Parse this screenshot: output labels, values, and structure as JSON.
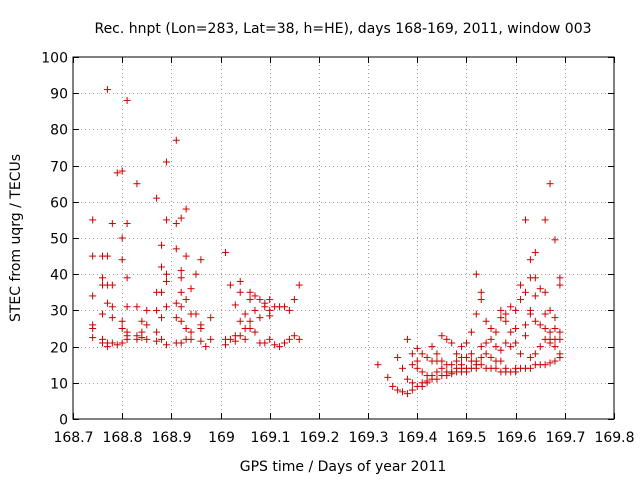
{
  "chart_data": {
    "type": "scatter",
    "title": "Rec. hnpt (Lon=283, Lat=38, h=HE), days 168-169, 2011, window 003",
    "xlabel": "GPS time / Days of year 2011",
    "ylabel": "STEC from uqrg / TECUs",
    "xlim": [
      168.7,
      169.8
    ],
    "ylim": [
      0,
      100
    ],
    "x_ticks": [
      "168.7",
      "168.8",
      "168.9",
      "169",
      "169.1",
      "169.2",
      "169.3",
      "169.4",
      "169.5",
      "169.6",
      "169.7",
      "169.8"
    ],
    "y_ticks": [
      "0",
      "10",
      "20",
      "30",
      "40",
      "50",
      "60",
      "70",
      "80",
      "90",
      "100"
    ],
    "grid": true,
    "marker": "+",
    "color": "#cc0000",
    "series": [
      {
        "points": [
          [
            168.74,
            55
          ],
          [
            168.74,
            45
          ],
          [
            168.74,
            34
          ],
          [
            168.74,
            26
          ],
          [
            168.74,
            25
          ],
          [
            168.74,
            22.5
          ],
          [
            168.76,
            45
          ],
          [
            168.76,
            39
          ],
          [
            168.76,
            37
          ],
          [
            168.76,
            29
          ],
          [
            168.76,
            22
          ],
          [
            168.76,
            21
          ],
          [
            168.77,
            91
          ],
          [
            168.77,
            45
          ],
          [
            168.77,
            37
          ],
          [
            168.77,
            32
          ],
          [
            168.77,
            21
          ],
          [
            168.77,
            20
          ],
          [
            168.78,
            54
          ],
          [
            168.78,
            37
          ],
          [
            168.78,
            31
          ],
          [
            168.78,
            28
          ],
          [
            168.78,
            21
          ],
          [
            168.79,
            68
          ],
          [
            168.79,
            20.5
          ],
          [
            168.8,
            68.5
          ],
          [
            168.8,
            50
          ],
          [
            168.8,
            44
          ],
          [
            168.8,
            27
          ],
          [
            168.8,
            25
          ],
          [
            168.8,
            21
          ],
          [
            168.81,
            88
          ],
          [
            168.81,
            54
          ],
          [
            168.81,
            39
          ],
          [
            168.81,
            31
          ],
          [
            168.81,
            24
          ],
          [
            168.81,
            23
          ],
          [
            168.81,
            22
          ],
          [
            168.83,
            65
          ],
          [
            168.83,
            31
          ],
          [
            168.83,
            23
          ],
          [
            168.83,
            22
          ],
          [
            168.84,
            27
          ],
          [
            168.84,
            24
          ],
          [
            168.84,
            22.5
          ],
          [
            168.85,
            30
          ],
          [
            168.85,
            26
          ],
          [
            168.85,
            22
          ],
          [
            168.87,
            61
          ],
          [
            168.87,
            35
          ],
          [
            168.87,
            30
          ],
          [
            168.87,
            24
          ],
          [
            168.87,
            21.5
          ],
          [
            168.88,
            48
          ],
          [
            168.88,
            42
          ],
          [
            168.88,
            35
          ],
          [
            168.88,
            28
          ],
          [
            168.88,
            22
          ],
          [
            168.89,
            71
          ],
          [
            168.89,
            55
          ],
          [
            168.89,
            40
          ],
          [
            168.89,
            38
          ],
          [
            168.89,
            31
          ],
          [
            168.89,
            20.5
          ],
          [
            168.91,
            77
          ],
          [
            168.91,
            54
          ],
          [
            168.91,
            47
          ],
          [
            168.91,
            32
          ],
          [
            168.91,
            28
          ],
          [
            168.91,
            21
          ],
          [
            168.92,
            55.5
          ],
          [
            168.92,
            41
          ],
          [
            168.92,
            39
          ],
          [
            168.92,
            35
          ],
          [
            168.92,
            31
          ],
          [
            168.92,
            27
          ],
          [
            168.92,
            21
          ],
          [
            168.93,
            58
          ],
          [
            168.93,
            45
          ],
          [
            168.93,
            33
          ],
          [
            168.93,
            25
          ],
          [
            168.93,
            22
          ],
          [
            168.94,
            36
          ],
          [
            168.94,
            29
          ],
          [
            168.94,
            24
          ],
          [
            168.94,
            22
          ],
          [
            168.95,
            40
          ],
          [
            168.95,
            29
          ],
          [
            168.96,
            44
          ],
          [
            168.96,
            26
          ],
          [
            168.96,
            25
          ],
          [
            168.96,
            21.5
          ],
          [
            168.97,
            20
          ],
          [
            168.98,
            28
          ],
          [
            168.98,
            22
          ],
          [
            169.01,
            46
          ],
          [
            169.01,
            22
          ],
          [
            169.01,
            20.5
          ],
          [
            169.02,
            37
          ],
          [
            169.02,
            22
          ],
          [
            169.03,
            31.5
          ],
          [
            169.03,
            23
          ],
          [
            169.03,
            21.5
          ],
          [
            169.04,
            38
          ],
          [
            169.04,
            35
          ],
          [
            169.04,
            27
          ],
          [
            169.04,
            23
          ],
          [
            169.05,
            29
          ],
          [
            169.05,
            25
          ],
          [
            169.05,
            22
          ],
          [
            169.06,
            35
          ],
          [
            169.06,
            33
          ],
          [
            169.06,
            27
          ],
          [
            169.06,
            25
          ],
          [
            169.07,
            34
          ],
          [
            169.07,
            30
          ],
          [
            169.07,
            24
          ],
          [
            169.08,
            33
          ],
          [
            169.08,
            28
          ],
          [
            169.08,
            21
          ],
          [
            169.09,
            32
          ],
          [
            169.09,
            31
          ],
          [
            169.09,
            21
          ],
          [
            169.1,
            33
          ],
          [
            169.1,
            30
          ],
          [
            169.1,
            28.5
          ],
          [
            169.1,
            22
          ],
          [
            169.11,
            31
          ],
          [
            169.11,
            20.5
          ],
          [
            169.12,
            31
          ],
          [
            169.12,
            20
          ],
          [
            169.13,
            31
          ],
          [
            169.13,
            21
          ],
          [
            169.14,
            30
          ],
          [
            169.14,
            22
          ],
          [
            169.15,
            33
          ],
          [
            169.15,
            23
          ],
          [
            169.16,
            37
          ],
          [
            169.16,
            22
          ],
          [
            169.32,
            15
          ],
          [
            169.34,
            11.5
          ],
          [
            169.35,
            9
          ],
          [
            169.36,
            17
          ],
          [
            169.36,
            8
          ],
          [
            169.37,
            14
          ],
          [
            169.37,
            7.5
          ],
          [
            169.38,
            22
          ],
          [
            169.38,
            11
          ],
          [
            169.38,
            7
          ],
          [
            169.39,
            18
          ],
          [
            169.39,
            15
          ],
          [
            169.39,
            10
          ],
          [
            169.39,
            8
          ],
          [
            169.4,
            19.5
          ],
          [
            169.4,
            16
          ],
          [
            169.4,
            14
          ],
          [
            169.4,
            9
          ],
          [
            169.41,
            18
          ],
          [
            169.41,
            13
          ],
          [
            169.41,
            10
          ],
          [
            169.41,
            9
          ],
          [
            169.42,
            17
          ],
          [
            169.42,
            12
          ],
          [
            169.42,
            10.5
          ],
          [
            169.42,
            10
          ],
          [
            169.43,
            20
          ],
          [
            169.43,
            16
          ],
          [
            169.43,
            12
          ],
          [
            169.43,
            11
          ],
          [
            169.44,
            18
          ],
          [
            169.44,
            16
          ],
          [
            169.44,
            13
          ],
          [
            169.44,
            11
          ],
          [
            169.45,
            23
          ],
          [
            169.45,
            16
          ],
          [
            169.45,
            14
          ],
          [
            169.45,
            12
          ],
          [
            169.46,
            22
          ],
          [
            169.46,
            15
          ],
          [
            169.46,
            13
          ],
          [
            169.46,
            12
          ],
          [
            169.47,
            21
          ],
          [
            169.47,
            15
          ],
          [
            169.47,
            13
          ],
          [
            169.47,
            12.5
          ],
          [
            169.48,
            18
          ],
          [
            169.48,
            16
          ],
          [
            169.48,
            14
          ],
          [
            169.48,
            13
          ],
          [
            169.49,
            20
          ],
          [
            169.49,
            17
          ],
          [
            169.49,
            15
          ],
          [
            169.49,
            14
          ],
          [
            169.49,
            13
          ],
          [
            169.5,
            21
          ],
          [
            169.5,
            17
          ],
          [
            169.5,
            14
          ],
          [
            169.5,
            13
          ],
          [
            169.51,
            24
          ],
          [
            169.51,
            18
          ],
          [
            169.51,
            16
          ],
          [
            169.51,
            14
          ],
          [
            169.52,
            40
          ],
          [
            169.52,
            29
          ],
          [
            169.52,
            16
          ],
          [
            169.52,
            15
          ],
          [
            169.52,
            14
          ],
          [
            169.53,
            35
          ],
          [
            169.53,
            33
          ],
          [
            169.53,
            20
          ],
          [
            169.53,
            17
          ],
          [
            169.53,
            15
          ],
          [
            169.54,
            27
          ],
          [
            169.54,
            21
          ],
          [
            169.54,
            18
          ],
          [
            169.54,
            14
          ],
          [
            169.55,
            25
          ],
          [
            169.55,
            22
          ],
          [
            169.55,
            17
          ],
          [
            169.55,
            14
          ],
          [
            169.56,
            24
          ],
          [
            169.56,
            20
          ],
          [
            169.56,
            16
          ],
          [
            169.56,
            14
          ],
          [
            169.57,
            30
          ],
          [
            169.57,
            28
          ],
          [
            169.57,
            19
          ],
          [
            169.57,
            16
          ],
          [
            169.57,
            13
          ],
          [
            169.58,
            29
          ],
          [
            169.58,
            27
          ],
          [
            169.58,
            21
          ],
          [
            169.58,
            14
          ],
          [
            169.58,
            13
          ],
          [
            169.59,
            31
          ],
          [
            169.59,
            24
          ],
          [
            169.59,
            20
          ],
          [
            169.59,
            13
          ],
          [
            169.6,
            30
          ],
          [
            169.6,
            25
          ],
          [
            169.6,
            21
          ],
          [
            169.6,
            14
          ],
          [
            169.6,
            13
          ],
          [
            169.61,
            37
          ],
          [
            169.61,
            33
          ],
          [
            169.61,
            18
          ],
          [
            169.61,
            14
          ],
          [
            169.62,
            55
          ],
          [
            169.62,
            35
          ],
          [
            169.62,
            26
          ],
          [
            169.62,
            23
          ],
          [
            169.62,
            14
          ],
          [
            169.63,
            44
          ],
          [
            169.63,
            39
          ],
          [
            169.63,
            30
          ],
          [
            169.63,
            29
          ],
          [
            169.63,
            17
          ],
          [
            169.63,
            14
          ],
          [
            169.64,
            46
          ],
          [
            169.64,
            39
          ],
          [
            169.64,
            34
          ],
          [
            169.64,
            27
          ],
          [
            169.64,
            18
          ],
          [
            169.64,
            15
          ],
          [
            169.65,
            36
          ],
          [
            169.65,
            26
          ],
          [
            169.65,
            20
          ],
          [
            169.65,
            15
          ],
          [
            169.66,
            55
          ],
          [
            169.66,
            35
          ],
          [
            169.66,
            29
          ],
          [
            169.66,
            25
          ],
          [
            169.66,
            22
          ],
          [
            169.66,
            15
          ],
          [
            169.67,
            65
          ],
          [
            169.67,
            30
          ],
          [
            169.67,
            24
          ],
          [
            169.67,
            22
          ],
          [
            169.67,
            21
          ],
          [
            169.67,
            15.5
          ],
          [
            169.68,
            49.5
          ],
          [
            169.68,
            28
          ],
          [
            169.68,
            25
          ],
          [
            169.68,
            22
          ],
          [
            169.68,
            20
          ],
          [
            169.68,
            16
          ],
          [
            169.69,
            39
          ],
          [
            169.69,
            37
          ],
          [
            169.69,
            24
          ],
          [
            169.69,
            22
          ],
          [
            169.69,
            18
          ],
          [
            169.69,
            17
          ]
        ]
      }
    ]
  }
}
